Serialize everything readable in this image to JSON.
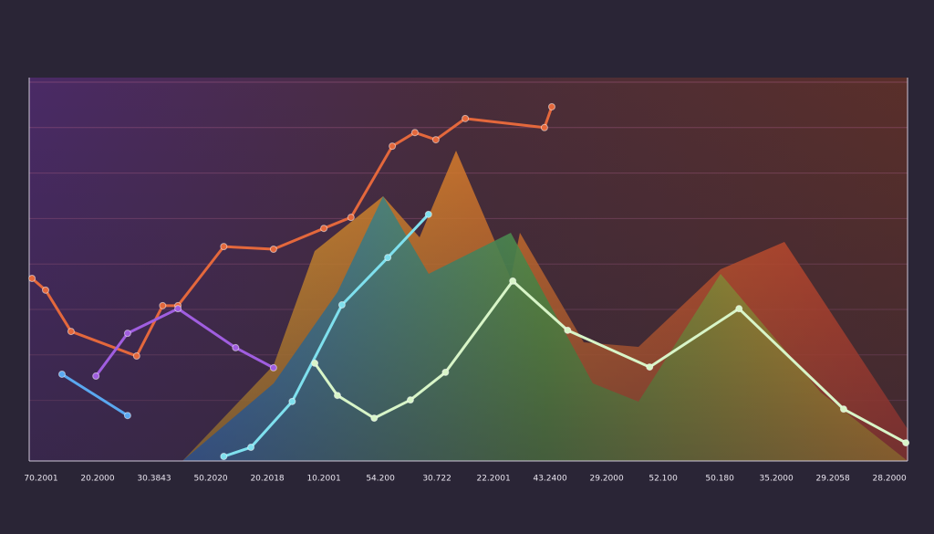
{
  "chart_data": {
    "type": "line",
    "categories": [
      "70.2001",
      "20.2000",
      "30.3843",
      "50.2020",
      "20.2018",
      "10.2001",
      "54.200",
      "30.722",
      "22.2001",
      "43.2400",
      "29.2000",
      "52.100",
      "50.180",
      "35.2000",
      "29.2058",
      "28.2000"
    ],
    "xlim": [
      -0.21,
      15.32
    ],
    "ylim": [
      0,
      100
    ],
    "yticks": [
      16,
      28,
      40,
      52,
      64,
      76,
      88,
      100
    ],
    "grid": true,
    "series": [
      {
        "color": "#e4683c",
        "x": [
          -0.16,
          0.08,
          0.53,
          1.69,
          2.15,
          2.42,
          3.23,
          4.11,
          5.0,
          5.48,
          6.21,
          6.61,
          6.98,
          7.5,
          8.9,
          9.03
        ],
        "values": [
          48.2,
          45.1,
          34.2,
          27.7,
          41.0,
          41.0,
          56.6,
          55.9,
          61.4,
          64.3,
          83.1,
          86.7,
          84.8,
          90.4,
          88.0,
          93.5
        ]
      },
      {
        "color": "#a05ee0",
        "x": [
          0.97,
          1.53,
          2.42,
          3.44,
          4.11
        ],
        "values": [
          22.4,
          33.7,
          40.2,
          29.9,
          24.6
        ]
      },
      {
        "color": "#5aa8f0",
        "x": [
          0.37,
          1.53
        ],
        "values": [
          22.9,
          12.0
        ]
      },
      {
        "color": "#7fe0ee",
        "x": [
          3.23,
          3.71,
          4.44,
          5.32,
          6.13,
          6.85
        ],
        "values": [
          1.2,
          3.6,
          15.7,
          41.2,
          53.7,
          65.1
        ]
      },
      {
        "color": "#d8f5c8",
        "x": [
          4.84,
          5.24,
          5.89,
          6.53,
          7.15,
          8.34,
          9.31,
          10.76,
          12.34,
          14.19,
          15.29
        ],
        "values": [
          25.8,
          17.3,
          11.3,
          16.1,
          23.4,
          47.5,
          34.5,
          24.8,
          40.2,
          13.7,
          4.8
        ]
      }
    ]
  }
}
